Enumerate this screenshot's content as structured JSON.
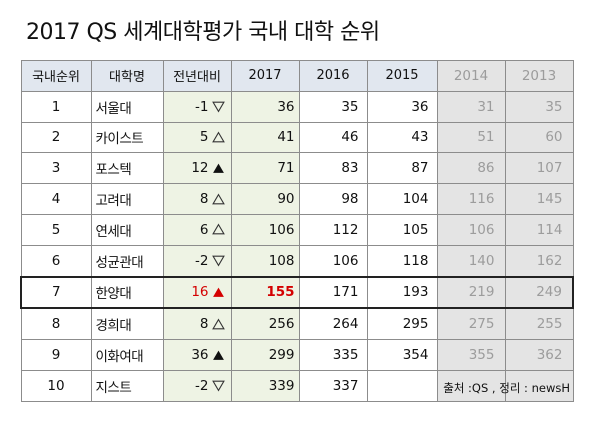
{
  "title": "2017 QS 세계대학평가 국내 대학 순위",
  "headers": [
    "국내순위",
    "대학명",
    "전년대비",
    "2017",
    "2016",
    "2015",
    "2014",
    "2013"
  ],
  "rows": [
    {
      "rank": "1",
      "name": "서울대",
      "change": "-1",
      "change_dir": "down",
      "y2017": "36",
      "y2016": "35",
      "y2015": "36",
      "y2014": "31",
      "y2013": "35"
    },
    {
      "rank": "2",
      "name": "카이스트",
      "change": "5",
      "change_dir": "up",
      "y2017": "41",
      "y2016": "46",
      "y2015": "43",
      "y2014": "51",
      "y2013": "60"
    },
    {
      "rank": "3",
      "name": "포스텍",
      "change": "12",
      "change_dir": "up-filled",
      "y2017": "71",
      "y2016": "83",
      "y2015": "87",
      "y2014": "86",
      "y2013": "107"
    },
    {
      "rank": "4",
      "name": "고려대",
      "change": "8",
      "change_dir": "up",
      "y2017": "90",
      "y2016": "98",
      "y2015": "104",
      "y2014": "116",
      "y2013": "145"
    },
    {
      "rank": "5",
      "name": "연세대",
      "change": "6",
      "change_dir": "up",
      "y2017": "106",
      "y2016": "112",
      "y2015": "105",
      "y2014": "106",
      "y2013": "114"
    },
    {
      "rank": "6",
      "name": "성균관대",
      "change": "-2",
      "change_dir": "down",
      "y2017": "108",
      "y2016": "106",
      "y2015": "118",
      "y2014": "140",
      "y2013": "162"
    },
    {
      "rank": "7",
      "name": "한양대",
      "change": "16",
      "change_dir": "up-filled-red",
      "y2017": "155",
      "y2016": "171",
      "y2015": "193",
      "y2014": "219",
      "y2013": "249",
      "highlight": true
    },
    {
      "rank": "8",
      "name": "경희대",
      "change": "8",
      "change_dir": "up",
      "y2017": "256",
      "y2016": "264",
      "y2015": "295",
      "y2014": "275",
      "y2013": "255"
    },
    {
      "rank": "9",
      "name": "이화여대",
      "change": "36",
      "change_dir": "up-filled",
      "y2017": "299",
      "y2016": "335",
      "y2015": "354",
      "y2014": "355",
      "y2013": "362"
    },
    {
      "rank": "10",
      "name": "지스트",
      "change": "-2",
      "change_dir": "down",
      "y2017": "339",
      "y2016": "337",
      "y2015": "",
      "y2014": "",
      "y2013": ""
    }
  ],
  "source": "출처 :QS , 정리 : newsH",
  "colors": {
    "header_bg": "#e1e7ef",
    "current_year_bg": "#eef3e4",
    "past_bg": "#e4e4e4",
    "past_text": "#9c9c9c",
    "highlight_red": "#d40000"
  }
}
